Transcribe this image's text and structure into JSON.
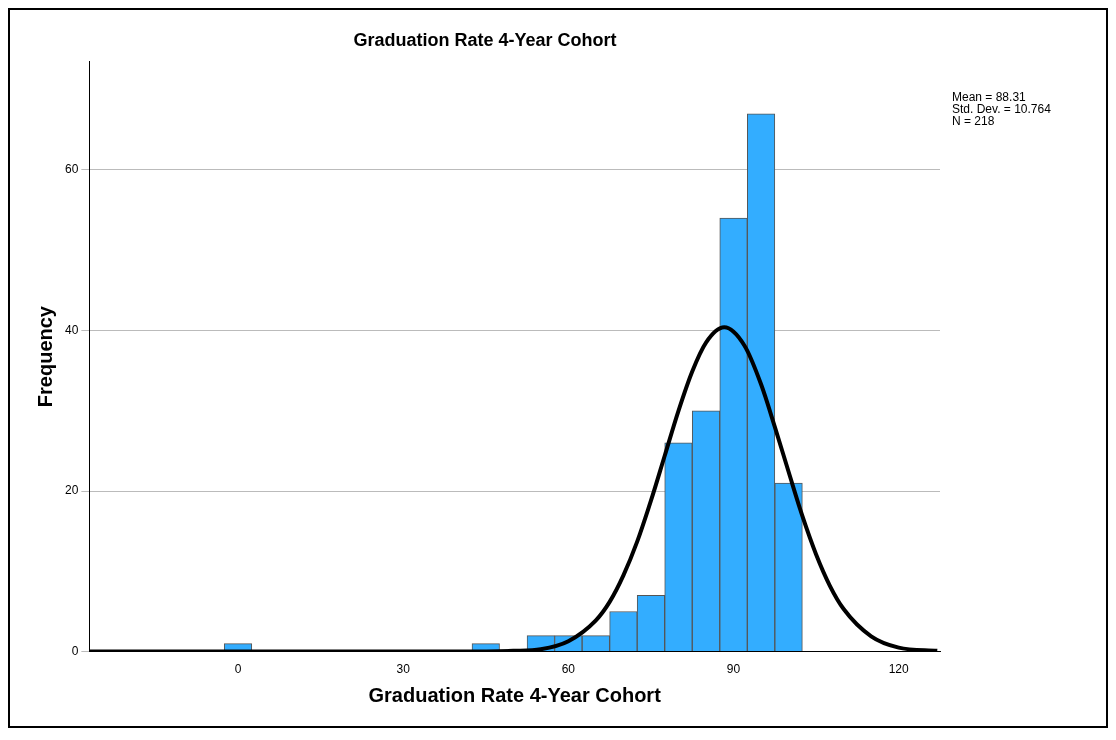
{
  "chart_data": {
    "type": "histogram",
    "title": "Graduation Rate 4-Year Cohort",
    "xlabel": "Graduation Rate 4-Year Cohort",
    "ylabel": "Frequency",
    "bins": [
      -2.5,
      2.5,
      7.5,
      12.5,
      17.5,
      22.5,
      27.5,
      32.5,
      37.5,
      42.5,
      47.5,
      52.5,
      57.5,
      62.5,
      67.5,
      72.5,
      77.5,
      82.5,
      87.5,
      92.5,
      97.5,
      102.5
    ],
    "values": [
      1,
      0,
      0,
      0,
      0,
      0,
      0,
      0,
      0,
      1,
      0,
      2,
      2,
      2,
      5,
      7,
      26,
      30,
      54,
      67,
      21
    ],
    "color": "#33adff",
    "series": [
      {
        "type": "line",
        "color": "#000000",
        "x": [
          -27,
          40,
          50,
          55,
          60,
          65,
          67.5,
          70,
          72.5,
          75,
          77.5,
          80,
          82.5,
          85,
          88.31,
          92,
          95,
          97.5,
          100,
          102.5,
          105,
          107.5,
          110,
          115,
          120,
          127
        ],
        "values": [
          0,
          0,
          0.1,
          0.3,
          1.3,
          3.9,
          6.2,
          9.5,
          13.7,
          18.8,
          24.4,
          30,
          34.9,
          38.5,
          40.4,
          38.1,
          33.3,
          28,
          22.4,
          16.9,
          12.1,
          8.2,
          5.3,
          1.9,
          0.5,
          0.1
        ]
      }
    ],
    "xlim": [
      -27,
      127.5
    ],
    "xticks": [
      0,
      30,
      60,
      90,
      120
    ],
    "ylim": [
      0,
      73.5
    ],
    "yticks": [
      0,
      20,
      40,
      60
    ],
    "grid": "y",
    "annotations": [
      "Mean = 88.31",
      "Std. Dev. = 10.764",
      "N = 218"
    ]
  }
}
